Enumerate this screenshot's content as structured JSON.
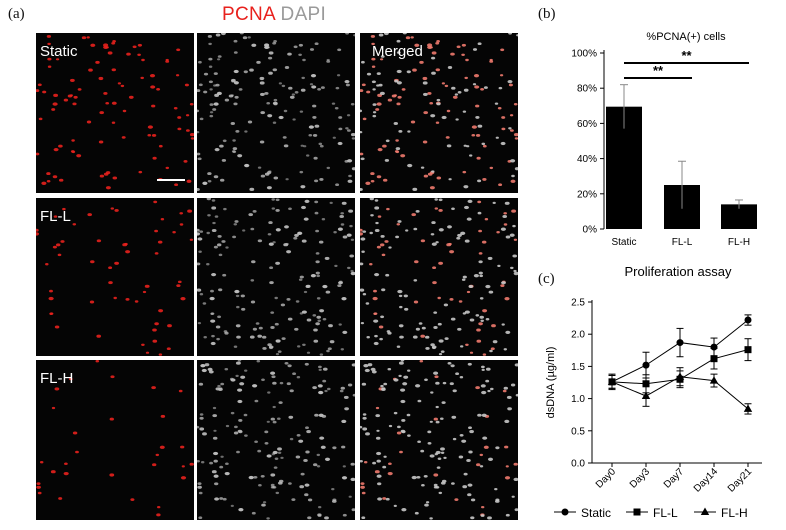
{
  "panel_a": {
    "label": "(a)",
    "title_red": "PCNA",
    "title_gray": "DAPI",
    "merged_label": "Merged",
    "rows": [
      "Static",
      "FL-L",
      "FL-H"
    ]
  },
  "panel_b": {
    "label": "(b)"
  },
  "panel_c": {
    "label": "(c)"
  },
  "colors": {
    "pcna": "#e8211d",
    "dapi": "#bdbdbd",
    "bar": "#000000",
    "bg": "#050505"
  },
  "chart_data": [
    {
      "type": "bar",
      "title": "%PCNA(+) cells",
      "categories": [
        "Static",
        "FL-L",
        "FL-H"
      ],
      "values": [
        69.5,
        25,
        14
      ],
      "errors": [
        12.5,
        13.5,
        2.5
      ],
      "ylim": [
        0,
        100
      ],
      "yticks": [
        "0%",
        "20%",
        "40%",
        "60%",
        "80%",
        "100%"
      ],
      "yticks_values": [
        0,
        20,
        40,
        60,
        80,
        100
      ],
      "significance": [
        {
          "from": "Static",
          "to": "FL-L",
          "label": "**"
        },
        {
          "from": "Static",
          "to": "FL-H",
          "label": "**"
        }
      ],
      "grid": false
    },
    {
      "type": "line",
      "title": "Proliferation assay",
      "ylabel": "dsDNA (µg/ml)",
      "xlabel": "",
      "x": [
        "Day0",
        "Day3",
        "Day7",
        "Day14",
        "Day21"
      ],
      "ylim": [
        0,
        2.5
      ],
      "yticks": [
        "0.0",
        "0.5",
        "1.0",
        "1.5",
        "2.0",
        "2.5"
      ],
      "yticks_values": [
        0,
        0.5,
        1.0,
        1.5,
        2.0,
        2.5
      ],
      "legend_position": "bottom",
      "grid": false,
      "series": [
        {
          "name": "Static",
          "marker": "circle",
          "values": [
            1.26,
            1.52,
            1.87,
            1.8,
            2.22
          ],
          "errors": [
            0.12,
            0.2,
            0.22,
            0.14,
            0.08
          ]
        },
        {
          "name": "FL-L",
          "marker": "square",
          "values": [
            1.26,
            1.23,
            1.3,
            1.62,
            1.76
          ],
          "errors": [
            0.1,
            0.14,
            0.13,
            0.16,
            0.17
          ]
        },
        {
          "name": "FL-H",
          "marker": "triangle",
          "values": [
            1.26,
            1.04,
            1.34,
            1.28,
            0.84
          ],
          "errors": [
            0.1,
            0.16,
            0.14,
            0.1,
            0.08
          ]
        }
      ]
    }
  ]
}
